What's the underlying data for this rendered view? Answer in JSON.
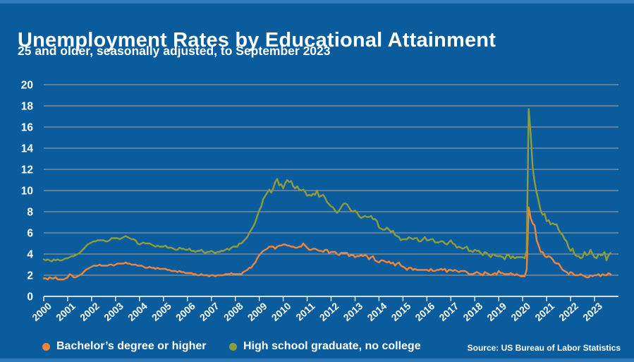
{
  "header": {
    "title": "Unemployment Rates by Educational Attainment",
    "subtitle": "25 and older, seasonally adjusted, to September 2023"
  },
  "source": "Source: US Bureau of Labor Statistics",
  "legend": {
    "items": [
      {
        "label": "Bachelor’s degree or higher",
        "color": "#F0863C"
      },
      {
        "label": "High school graduate, no college",
        "color": "#8F9C3E"
      }
    ]
  },
  "colors": {
    "background": "#0A5C9D",
    "accent_bar": "#2F7BB9",
    "gridline": "#C9AD90",
    "axis": "#F2EFE9",
    "text": "#FFFFFF",
    "bachelors_line": "#F0863C",
    "high_school_line": "#8F9C3E"
  },
  "chart_data": {
    "type": "line",
    "title": "Unemployment Rates by Educational Attainment",
    "subtitle": "25 and older, seasonally adjusted, to September 2023",
    "frequency": "monthly",
    "x_start": "2000-01",
    "x_end": "2023-09",
    "x_tick_years": [
      2000,
      2001,
      2002,
      2003,
      2004,
      2005,
      2006,
      2007,
      2008,
      2009,
      2010,
      2011,
      2012,
      2013,
      2014,
      2015,
      2016,
      2017,
      2018,
      2019,
      2020,
      2021,
      2022,
      2023
    ],
    "y_ticks": [
      0,
      2,
      4,
      6,
      8,
      10,
      12,
      14,
      16,
      18,
      20
    ],
    "ylim": [
      0,
      20
    ],
    "grid": true,
    "legend_position": "bottom",
    "series": [
      {
        "name": "Bachelor’s degree or higher",
        "color": "#F0863C",
        "values": [
          1.7,
          1.7,
          1.6,
          1.8,
          1.7,
          1.7,
          1.8,
          1.6,
          1.6,
          1.6,
          1.6,
          1.7,
          1.8,
          2.1,
          2.0,
          1.8,
          1.8,
          1.9,
          2.0,
          2.1,
          2.3,
          2.5,
          2.6,
          2.7,
          2.8,
          2.9,
          2.9,
          2.9,
          3.0,
          2.9,
          2.9,
          2.9,
          2.9,
          3.0,
          3.0,
          2.9,
          3.0,
          3.1,
          3.1,
          3.1,
          3.1,
          3.2,
          3.1,
          3.1,
          3.0,
          3.0,
          3.0,
          2.9,
          2.9,
          2.9,
          2.8,
          2.7,
          2.7,
          2.8,
          2.7,
          2.7,
          2.6,
          2.7,
          2.6,
          2.6,
          2.6,
          2.6,
          2.5,
          2.5,
          2.4,
          2.4,
          2.4,
          2.3,
          2.4,
          2.3,
          2.3,
          2.2,
          2.2,
          2.2,
          2.2,
          2.1,
          2.1,
          2.0,
          2.0,
          2.1,
          2.0,
          2.0,
          2.0,
          1.9,
          2.0,
          2.0,
          1.9,
          2.0,
          2.0,
          2.0,
          2.0,
          2.1,
          2.1,
          2.1,
          2.2,
          2.1,
          2.1,
          2.1,
          2.1,
          2.1,
          2.3,
          2.4,
          2.5,
          2.7,
          2.7,
          3.0,
          3.2,
          3.6,
          3.9,
          4.1,
          4.3,
          4.4,
          4.5,
          4.7,
          4.7,
          4.7,
          4.5,
          4.7,
          4.8,
          4.8,
          4.9,
          4.9,
          4.8,
          4.8,
          4.7,
          4.7,
          4.6,
          4.6,
          4.7,
          4.7,
          5.0,
          4.8,
          4.6,
          4.4,
          4.4,
          4.5,
          4.5,
          4.4,
          4.3,
          4.3,
          4.2,
          4.4,
          4.4,
          4.1,
          4.2,
          4.2,
          4.2,
          4.0,
          3.9,
          4.1,
          4.1,
          4.1,
          4.1,
          3.8,
          3.9,
          3.9,
          3.7,
          3.8,
          3.8,
          3.9,
          3.8,
          3.9,
          3.8,
          3.5,
          3.7,
          3.8,
          3.4,
          3.3,
          3.2,
          3.4,
          3.4,
          3.3,
          3.2,
          3.3,
          3.1,
          3.2,
          2.9,
          3.1,
          3.2,
          2.9,
          2.8,
          2.7,
          2.5,
          2.7,
          2.7,
          2.5,
          2.6,
          2.5,
          2.5,
          2.5,
          2.5,
          2.5,
          2.5,
          2.4,
          2.6,
          2.4,
          2.4,
          2.5,
          2.5,
          2.6,
          2.5,
          2.6,
          2.3,
          2.5,
          2.5,
          2.4,
          2.5,
          2.4,
          2.3,
          2.4,
          2.4,
          2.4,
          2.3,
          2.1,
          2.1,
          2.1,
          2.2,
          2.3,
          2.2,
          2.1,
          2.0,
          2.3,
          2.2,
          2.1,
          2.0,
          2.1,
          2.2,
          2.1,
          2.4,
          2.2,
          2.2,
          2.1,
          2.1,
          2.1,
          2.2,
          2.1,
          2.0,
          2.1,
          2.0,
          1.9,
          1.9,
          1.9,
          2.5,
          8.4,
          7.4,
          6.9,
          6.7,
          5.3,
          4.8,
          4.2,
          4.2,
          3.8,
          3.7,
          3.8,
          3.7,
          3.5,
          3.2,
          3.1,
          3.1,
          2.8,
          2.5,
          2.4,
          2.3,
          2.1,
          2.3,
          2.2,
          2.0,
          2.0,
          2.0,
          2.1,
          2.0,
          1.9,
          1.8,
          1.8,
          2.0,
          1.9,
          2.0,
          2.0,
          2.1,
          1.9,
          2.1,
          2.0,
          2.0,
          2.2,
          2.1
        ]
      },
      {
        "name": "High school graduate, no college",
        "color": "#8F9C3E",
        "values": [
          3.5,
          3.4,
          3.5,
          3.4,
          3.3,
          3.5,
          3.4,
          3.5,
          3.4,
          3.4,
          3.5,
          3.6,
          3.6,
          3.7,
          3.8,
          3.8,
          3.9,
          4.0,
          4.1,
          4.3,
          4.5,
          4.7,
          4.9,
          5.0,
          5.1,
          5.2,
          5.2,
          5.3,
          5.3,
          5.3,
          5.3,
          5.2,
          5.2,
          5.3,
          5.5,
          5.5,
          5.5,
          5.5,
          5.4,
          5.5,
          5.6,
          5.7,
          5.6,
          5.5,
          5.4,
          5.4,
          5.3,
          5.0,
          4.9,
          5.0,
          5.1,
          5.0,
          5.0,
          5.0,
          4.9,
          4.8,
          4.7,
          4.8,
          4.7,
          4.7,
          4.7,
          4.8,
          4.6,
          4.6,
          4.6,
          4.5,
          4.4,
          4.4,
          4.6,
          4.5,
          4.5,
          4.4,
          4.4,
          4.5,
          4.3,
          4.3,
          4.2,
          4.3,
          4.3,
          4.4,
          4.2,
          4.1,
          4.2,
          4.2,
          4.3,
          4.2,
          4.1,
          4.2,
          4.2,
          4.3,
          4.3,
          4.4,
          4.5,
          4.4,
          4.6,
          4.7,
          4.7,
          4.7,
          5.0,
          5.0,
          5.2,
          5.4,
          5.6,
          6.0,
          6.3,
          6.6,
          7.0,
          7.6,
          8.1,
          8.5,
          9.2,
          9.5,
          9.8,
          10.1,
          9.8,
          10.2,
          10.8,
          11.1,
          10.5,
          10.6,
          10.2,
          10.7,
          11.0,
          10.8,
          10.9,
          10.4,
          10.2,
          10.4,
          10.1,
          10.0,
          10.1,
          9.9,
          9.5,
          9.6,
          9.5,
          9.7,
          9.6,
          10.0,
          9.4,
          9.5,
          9.6,
          9.3,
          8.9,
          8.7,
          8.5,
          8.4,
          8.1,
          7.9,
          8.1,
          8.4,
          8.7,
          8.8,
          8.7,
          8.4,
          8.1,
          8.0,
          8.1,
          7.9,
          7.6,
          7.4,
          7.5,
          7.6,
          7.5,
          7.5,
          7.6,
          7.3,
          7.3,
          7.1,
          6.5,
          6.4,
          6.3,
          6.3,
          6.5,
          6.3,
          6.1,
          6.2,
          5.8,
          5.7,
          5.6,
          5.3,
          5.4,
          5.4,
          5.4,
          5.6,
          5.5,
          5.4,
          5.5,
          5.5,
          5.2,
          5.2,
          5.4,
          5.6,
          5.3,
          5.3,
          5.4,
          5.4,
          5.1,
          5.1,
          5.1,
          5.2,
          5.2,
          5.0,
          4.9,
          5.1,
          5.3,
          5.0,
          4.9,
          4.6,
          4.7,
          4.6,
          4.5,
          4.6,
          4.7,
          4.3,
          4.3,
          4.2,
          4.4,
          4.3,
          4.3,
          4.1,
          3.9,
          4.2,
          4.1,
          3.9,
          3.7,
          4.0,
          3.9,
          3.8,
          3.8,
          3.8,
          3.7,
          3.5,
          3.9,
          3.9,
          3.6,
          3.8,
          3.6,
          3.7,
          3.7,
          3.7,
          3.7,
          3.6,
          4.3,
          17.7,
          15.3,
          12.2,
          10.8,
          9.8,
          9.0,
          8.1,
          7.7,
          7.8,
          7.1,
          7.2,
          6.8,
          6.9,
          6.8,
          6.8,
          6.3,
          6.0,
          5.8,
          5.4,
          5.2,
          4.6,
          4.3,
          4.5,
          4.0,
          3.8,
          3.8,
          3.6,
          3.7,
          4.2,
          3.9,
          4.0,
          4.4,
          4.0,
          3.7,
          3.6,
          4.0,
          3.9,
          3.9,
          4.2,
          3.4,
          3.9,
          4.1
        ]
      }
    ]
  }
}
